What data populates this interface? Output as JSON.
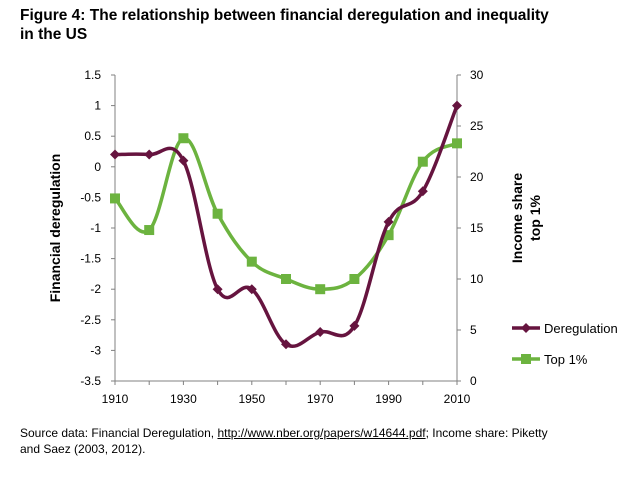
{
  "title_lines": [
    "Figure 4: The relationship between financial deregulation and inequality",
    "in the US"
  ],
  "source": {
    "prefix": "Source data: Financial Deregulation, ",
    "link": "http://www.nber.org/papers/w14644.pdf",
    "suffix_line1": "; Income share: Piketty",
    "line2": "and Saez (2003, 2012)."
  },
  "colors": {
    "deregulation": "#66143F",
    "top1": "#6CB33F",
    "axis": "#808080"
  },
  "chart_data": {
    "type": "line",
    "x": [
      1910,
      1920,
      1930,
      1940,
      1950,
      1960,
      1970,
      1980,
      1990,
      2000,
      2010
    ],
    "xlabel": "",
    "x_ticks": [
      "1910",
      "1930",
      "1950",
      "1970",
      "1990",
      "2010"
    ],
    "xlim": [
      1910,
      2010
    ],
    "y_left": {
      "label": "Financial deregulation",
      "lim": [
        -3.5,
        1.5
      ],
      "ticks": [
        "1.5",
        "1",
        "0.5",
        "0",
        "-0.5",
        "-1",
        "-1.5",
        "-2",
        "-2.5",
        "-3",
        "-3.5"
      ]
    },
    "y_right": {
      "label_lines": [
        "Income share",
        "top 1%"
      ],
      "lim": [
        0,
        30
      ],
      "ticks": [
        "30",
        "25",
        "20",
        "15",
        "10",
        "5",
        "0"
      ]
    },
    "series": [
      {
        "name": "Deregulation",
        "axis": "left",
        "marker": "diamond",
        "values": [
          0.2,
          0.2,
          0.1,
          -2.0,
          -2.0,
          -2.9,
          -2.7,
          -2.6,
          -0.9,
          -0.4,
          1.0
        ]
      },
      {
        "name": "Top 1%",
        "axis": "right",
        "marker": "square",
        "values": [
          17.9,
          14.8,
          23.8,
          16.4,
          11.7,
          10.0,
          9.0,
          10.0,
          14.3,
          21.5,
          23.3
        ]
      }
    ],
    "legend": "right",
    "grid": false
  }
}
